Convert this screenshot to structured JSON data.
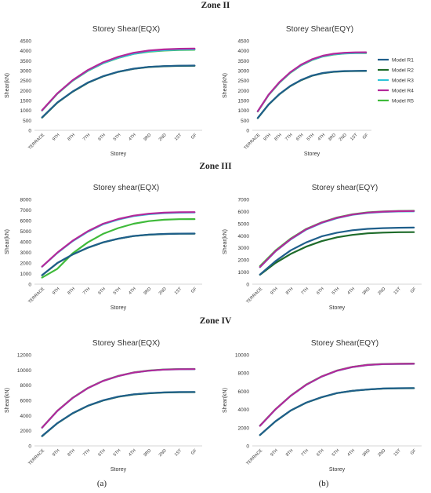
{
  "zones": [
    "Zone II",
    "Zone III",
    "Zone IV"
  ],
  "panel_labels": [
    "(a)",
    "(b)"
  ],
  "colors": {
    "Model R1": "#1f5f8b",
    "Model R2": "#1e6b2a",
    "Model R3": "#2ec4d8",
    "Model R4": "#b4289a",
    "Model R5": "#3fba3a"
  },
  "chart_data": [
    {
      "type": "line",
      "zone": "Zone II",
      "panel": "(a)",
      "title": "Storey Shear(EQX)",
      "xlabel": "Storey",
      "ylabel": "Shear(kN)",
      "categories": [
        "TERRACE",
        "9TH",
        "8TH",
        "7TH",
        "6TH",
        "5TH",
        "4TH",
        "3RD",
        "2ND",
        "1ST",
        "GF"
      ],
      "ylim": [
        0,
        4500
      ],
      "yticks": [
        0,
        500,
        1000,
        1500,
        2000,
        2500,
        3000,
        3500,
        4000,
        4500
      ],
      "legend": "none",
      "series": [
        {
          "name": "Model R1",
          "values": [
            650,
            1400,
            1950,
            2400,
            2720,
            2950,
            3100,
            3190,
            3230,
            3250,
            3255
          ]
        },
        {
          "name": "Model R2",
          "values": [
            640,
            1390,
            1940,
            2390,
            2710,
            2940,
            3090,
            3180,
            3220,
            3240,
            3245
          ]
        },
        {
          "name": "Model R3",
          "values": [
            1000,
            1850,
            2500,
            3000,
            3380,
            3650,
            3850,
            3970,
            4030,
            4060,
            4070
          ]
        },
        {
          "name": "Model R4",
          "values": [
            1010,
            1860,
            2520,
            3030,
            3420,
            3700,
            3900,
            4010,
            4070,
            4100,
            4110
          ]
        },
        {
          "name": "Model R5",
          "values": [
            995,
            1840,
            2490,
            2990,
            3370,
            3640,
            3840,
            3950,
            4010,
            4040,
            4050
          ]
        }
      ]
    },
    {
      "type": "line",
      "zone": "Zone II",
      "panel": "(b)",
      "title": "Storey Shear(EQY)",
      "xlabel": "Storey",
      "ylabel": "Shear(kN)",
      "categories": [
        "TERRACE",
        "9TH",
        "8TH",
        "7TH",
        "6TH",
        "5TH",
        "4TH",
        "3RD",
        "2ND",
        "1ST",
        "GF"
      ],
      "ylim": [
        0,
        4500
      ],
      "yticks": [
        0,
        500,
        1000,
        1500,
        2000,
        2500,
        3000,
        3500,
        4000,
        4500
      ],
      "legend": "right",
      "series": [
        {
          "name": "Model R1",
          "values": [
            620,
            1300,
            1820,
            2230,
            2530,
            2750,
            2880,
            2950,
            2980,
            2990,
            2995
          ]
        },
        {
          "name": "Model R2",
          "values": [
            610,
            1290,
            1810,
            2220,
            2520,
            2740,
            2870,
            2940,
            2970,
            2980,
            2985
          ]
        },
        {
          "name": "Model R3",
          "values": [
            950,
            1780,
            2400,
            2900,
            3270,
            3540,
            3720,
            3820,
            3870,
            3890,
            3895
          ]
        },
        {
          "name": "Model R4",
          "values": [
            960,
            1790,
            2420,
            2920,
            3300,
            3570,
            3750,
            3850,
            3900,
            3920,
            3925
          ]
        },
        {
          "name": "Model R5",
          "values": [
            945,
            1770,
            2390,
            2890,
            3260,
            3530,
            3710,
            3810,
            3860,
            3880,
            3885
          ]
        }
      ]
    },
    {
      "type": "line",
      "zone": "Zone III",
      "panel": "(a)",
      "title": "Storey shear(EQX)",
      "xlabel": "Storey",
      "ylabel": "Shear(kN)",
      "categories": [
        "TERRACE",
        "9TH",
        "8TH",
        "7TH",
        "6TH",
        "5TH",
        "4TH",
        "3RD",
        "2ND",
        "1ST",
        "GF"
      ],
      "ylim": [
        0,
        8000
      ],
      "yticks": [
        0,
        1000,
        2000,
        3000,
        4000,
        5000,
        6000,
        7000,
        8000
      ],
      "legend": "none",
      "series": [
        {
          "name": "Model R1",
          "values": [
            850,
            2000,
            2800,
            3450,
            3950,
            4300,
            4550,
            4680,
            4740,
            4770,
            4780
          ]
        },
        {
          "name": "Model R2",
          "values": [
            840,
            1990,
            2790,
            3440,
            3940,
            4290,
            4540,
            4670,
            4730,
            4760,
            4770
          ]
        },
        {
          "name": "Model R3",
          "values": [
            1650,
            2950,
            4050,
            4950,
            5650,
            6100,
            6420,
            6600,
            6700,
            6750,
            6760
          ]
        },
        {
          "name": "Model R4",
          "values": [
            1660,
            2980,
            4100,
            5000,
            5700,
            6150,
            6470,
            6650,
            6750,
            6790,
            6800
          ]
        },
        {
          "name": "Model R5",
          "values": [
            620,
            1450,
            2900,
            3950,
            4750,
            5300,
            5700,
            5950,
            6080,
            6130,
            6140
          ]
        }
      ]
    },
    {
      "type": "line",
      "zone": "Zone III",
      "panel": "(b)",
      "title": "Storey shear(EQY)",
      "xlabel": "Storey",
      "ylabel": "Shear(kN)",
      "categories": [
        "TERRACE",
        "9TH",
        "8TH",
        "7TH",
        "6TH",
        "5TH",
        "4TH",
        "3RD",
        "2ND",
        "1ST",
        "GF"
      ],
      "ylim": [
        0,
        7000
      ],
      "yticks": [
        0,
        1000,
        2000,
        3000,
        4000,
        5000,
        6000,
        7000
      ],
      "legend": "none",
      "series": [
        {
          "name": "Model R1",
          "values": [
            800,
            1900,
            2800,
            3450,
            3950,
            4250,
            4450,
            4570,
            4630,
            4660,
            4670
          ]
        },
        {
          "name": "Model R2",
          "values": [
            780,
            1750,
            2500,
            3100,
            3550,
            3870,
            4070,
            4200,
            4260,
            4290,
            4300
          ]
        },
        {
          "name": "Model R3",
          "values": [
            1400,
            2700,
            3700,
            4500,
            5050,
            5450,
            5720,
            5880,
            5960,
            6000,
            6010
          ]
        },
        {
          "name": "Model R4",
          "values": [
            1420,
            2720,
            3730,
            4530,
            5080,
            5480,
            5750,
            5910,
            5990,
            6030,
            6040
          ]
        },
        {
          "name": "Model R5",
          "values": [
            1500,
            2780,
            3770,
            4560,
            5100,
            5500,
            5770,
            5930,
            6010,
            6050,
            6060
          ]
        }
      ]
    },
    {
      "type": "line",
      "zone": "Zone IV",
      "panel": "(a)",
      "title": "Storey Shear(EQX)",
      "xlabel": "Storey",
      "ylabel": "Shear(kN)",
      "categories": [
        "TERRACE",
        "9TH",
        "8TH",
        "7TH",
        "6TH",
        "5TH",
        "4TH",
        "3RD",
        "2ND",
        "1ST",
        "GF"
      ],
      "ylim": [
        0,
        12000
      ],
      "yticks": [
        0,
        2000,
        4000,
        6000,
        8000,
        10000,
        12000
      ],
      "legend": "none",
      "series": [
        {
          "name": "Model R1",
          "values": [
            1300,
            3000,
            4300,
            5300,
            6000,
            6500,
            6800,
            6950,
            7050,
            7100,
            7110
          ]
        },
        {
          "name": "Model R2",
          "values": [
            1280,
            2980,
            4280,
            5280,
            5980,
            6480,
            6780,
            6930,
            7030,
            7080,
            7090
          ]
        },
        {
          "name": "Model R3",
          "values": [
            2400,
            4600,
            6300,
            7600,
            8550,
            9200,
            9650,
            9900,
            10050,
            10100,
            10110
          ]
        },
        {
          "name": "Model R4",
          "values": [
            2410,
            4610,
            6310,
            7610,
            8560,
            9210,
            9660,
            9910,
            10060,
            10110,
            10120
          ]
        },
        {
          "name": "Model R5",
          "values": [
            2420,
            4630,
            6330,
            7630,
            8580,
            9230,
            9680,
            9930,
            10080,
            10130,
            10140
          ]
        }
      ]
    },
    {
      "type": "line",
      "zone": "Zone IV",
      "panel": "(b)",
      "title": "Storey Shear(EQY)",
      "xlabel": "Storey",
      "ylabel": "Shear(kN)",
      "categories": [
        "TERRACE",
        "9TH",
        "8TH",
        "7TH",
        "6TH",
        "5TH",
        "4TH",
        "3RD",
        "2ND",
        "1ST",
        "GF"
      ],
      "ylim": [
        0,
        10000
      ],
      "yticks": [
        0,
        2000,
        4000,
        6000,
        8000,
        10000
      ],
      "legend": "none",
      "series": [
        {
          "name": "Model R1",
          "values": [
            1200,
            2700,
            3900,
            4750,
            5350,
            5800,
            6050,
            6200,
            6300,
            6340,
            6350
          ]
        },
        {
          "name": "Model R2",
          "values": [
            1190,
            2690,
            3890,
            4740,
            5340,
            5790,
            6040,
            6190,
            6290,
            6330,
            6340
          ]
        },
        {
          "name": "Model R3",
          "values": [
            2200,
            4000,
            5500,
            6700,
            7600,
            8250,
            8650,
            8880,
            8970,
            9000,
            9010
          ]
        },
        {
          "name": "Model R4",
          "values": [
            2210,
            4010,
            5510,
            6710,
            7610,
            8260,
            8660,
            8890,
            8980,
            9010,
            9020
          ]
        },
        {
          "name": "Model R5",
          "values": [
            2230,
            4030,
            5530,
            6730,
            7630,
            8280,
            8680,
            8910,
            9000,
            9030,
            9040
          ]
        }
      ]
    }
  ]
}
